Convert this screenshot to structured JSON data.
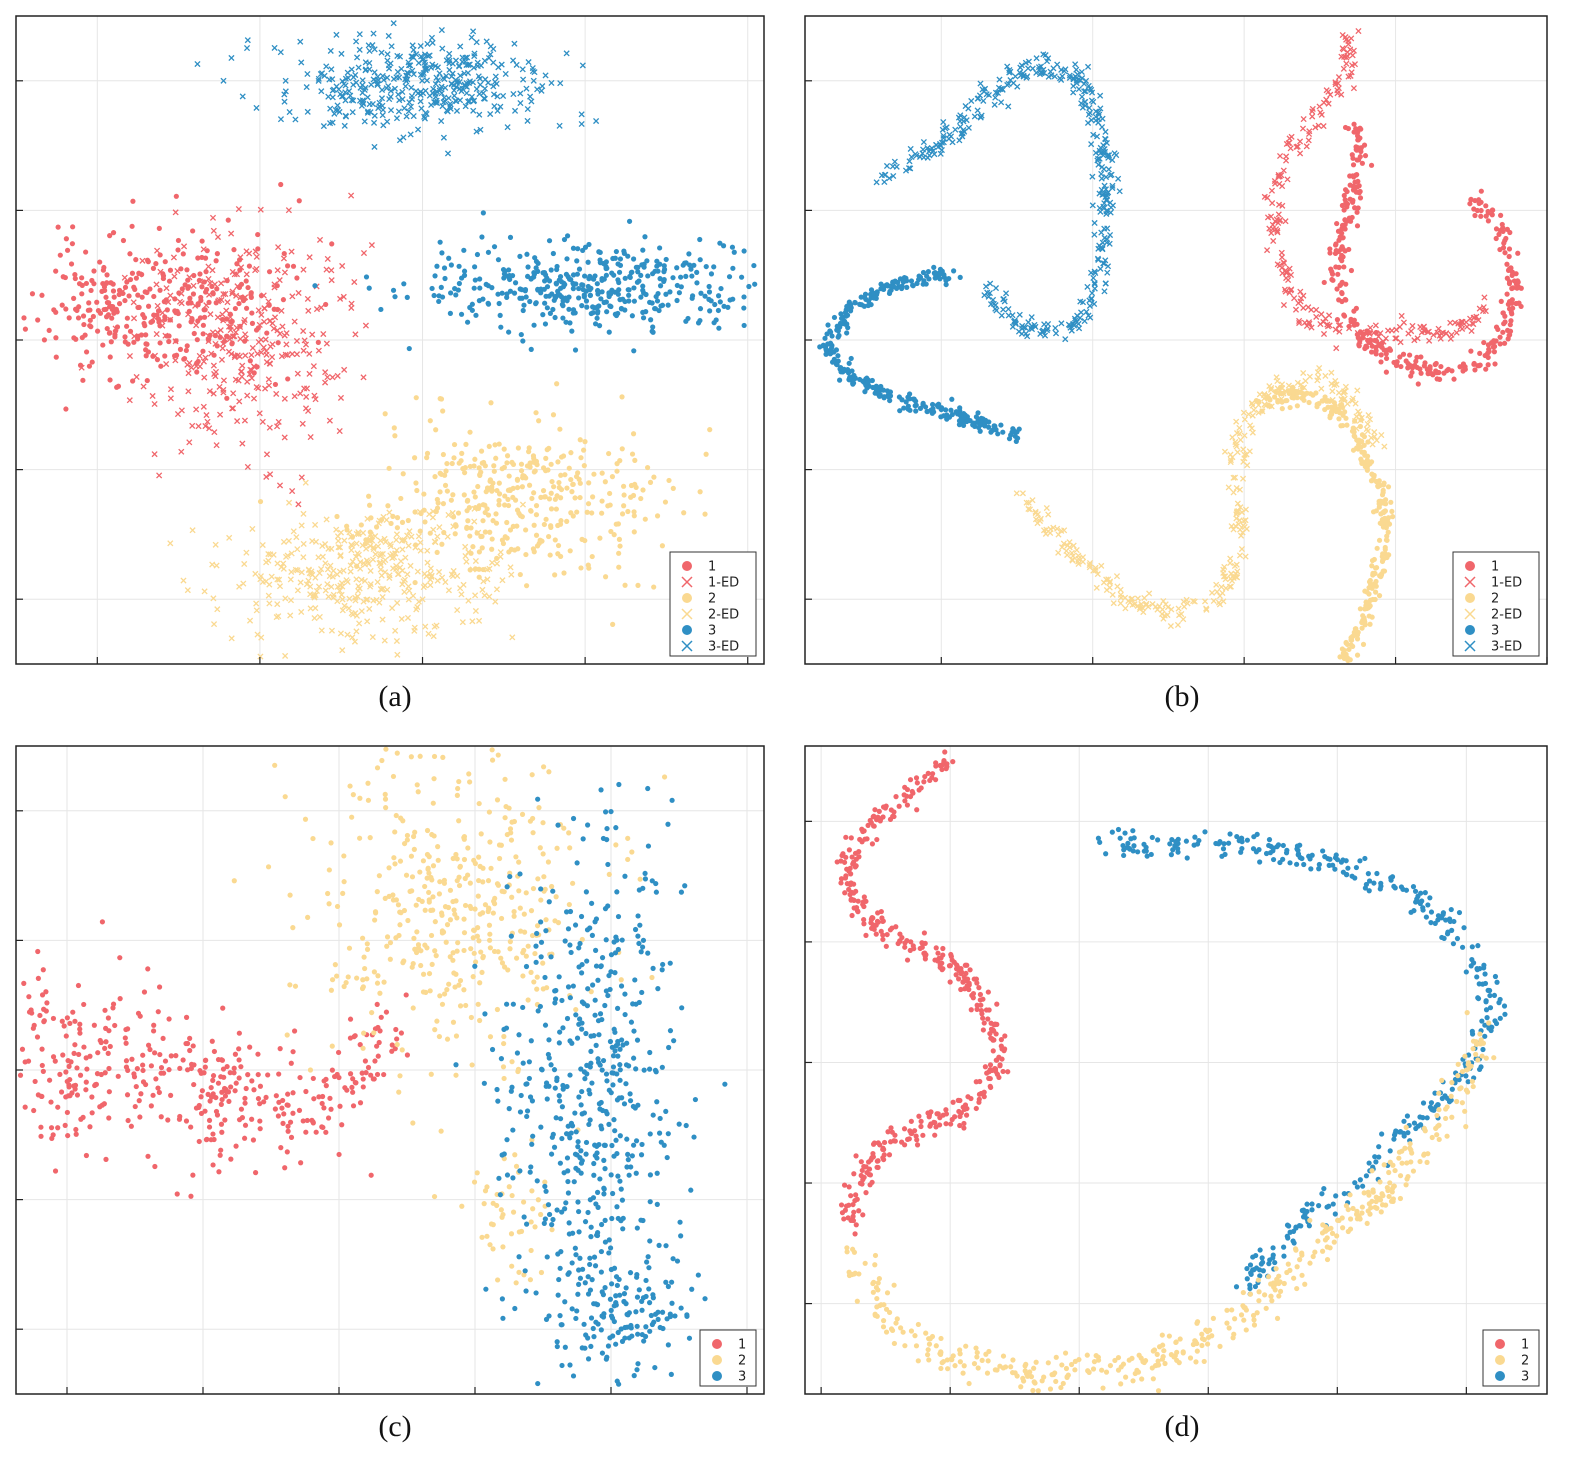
{
  "colors": {
    "c1": "#f0666b",
    "c2": "#fad991",
    "c3": "#2f8fc4"
  },
  "chart_data": [
    {
      "id": "a",
      "type": "scatter",
      "caption": "(a)",
      "xlim": [
        -1.25,
        1.05
      ],
      "ylim": [
        -1.0,
        1.0
      ],
      "xticks": [
        -1.0,
        -0.5,
        0.0,
        0.5,
        1.0
      ],
      "yticks": [
        -0.8,
        -0.4,
        0.0,
        0.4,
        0.8
      ],
      "grid": true,
      "legend": {
        "position": "bottom-right",
        "entries": [
          {
            "label": "1",
            "marker": "o",
            "color": "c1"
          },
          {
            "label": "1-ED",
            "marker": "x",
            "color": "c1"
          },
          {
            "label": "2",
            "marker": "o",
            "color": "c2"
          },
          {
            "label": "2-ED",
            "marker": "x",
            "color": "c2"
          },
          {
            "label": "3",
            "marker": "o",
            "color": "c3"
          },
          {
            "label": "3-ED",
            "marker": "x",
            "color": "c3"
          }
        ]
      },
      "series": [
        {
          "name": "1",
          "color": "c1",
          "marker": "o",
          "shape": "blob",
          "center": [
            -0.83,
            0.1
          ],
          "spread": [
            0.19,
            0.11
          ],
          "n": 340,
          "seed": 11
        },
        {
          "name": "1-ED",
          "color": "c1",
          "marker": "x",
          "shape": "blob",
          "center": [
            -0.55,
            0.0
          ],
          "spread": [
            0.16,
            0.17
          ],
          "n": 320,
          "seed": 12
        },
        {
          "name": "3-ED",
          "color": "c3",
          "marker": "x",
          "shape": "blob",
          "center": [
            -0.05,
            0.79
          ],
          "spread": [
            0.21,
            0.07
          ],
          "n": 400,
          "seed": 13
        },
        {
          "name": "3",
          "color": "c3",
          "marker": "o",
          "shape": "blob",
          "center": [
            0.52,
            0.16
          ],
          "spread": [
            0.28,
            0.07
          ],
          "n": 420,
          "seed": 14
        },
        {
          "name": "2",
          "color": "c2",
          "marker": "o",
          "shape": "blob",
          "center": [
            0.3,
            -0.48
          ],
          "spread": [
            0.23,
            0.12
          ],
          "n": 380,
          "seed": 15
        },
        {
          "name": "2-ED",
          "color": "c2",
          "marker": "x",
          "shape": "blob",
          "center": [
            -0.18,
            -0.72
          ],
          "spread": [
            0.21,
            0.1
          ],
          "n": 380,
          "seed": 16
        }
      ]
    },
    {
      "id": "b",
      "type": "scatter",
      "caption": "(b)",
      "xlim": [
        -1.2,
        1.25
      ],
      "ylim": [
        -1.0,
        1.0
      ],
      "xticks": [
        -0.75,
        -0.25,
        0.25,
        0.75,
        1.25
      ],
      "yticks": [
        -0.8,
        -0.4,
        0.0,
        0.4,
        0.8
      ],
      "grid": true,
      "legend": {
        "position": "bottom-right",
        "entries": [
          {
            "label": "1",
            "marker": "o",
            "color": "c1"
          },
          {
            "label": "1-ED",
            "marker": "x",
            "color": "c1"
          },
          {
            "label": "2",
            "marker": "o",
            "color": "c2"
          },
          {
            "label": "2-ED",
            "marker": "x",
            "color": "c2"
          },
          {
            "label": "3",
            "marker": "o",
            "color": "c3"
          },
          {
            "label": "3-ED",
            "marker": "x",
            "color": "c3"
          }
        ]
      },
      "series": [
        {
          "name": "3-ED",
          "color": "c3",
          "marker": "x",
          "shape": "curve",
          "width": 0.018,
          "n": 380,
          "seed": 21,
          "path": [
            [
              -0.95,
              0.5
            ],
            [
              -0.75,
              0.6
            ],
            [
              -0.6,
              0.75
            ],
            [
              -0.45,
              0.85
            ],
            [
              -0.3,
              0.82
            ],
            [
              -0.22,
              0.65
            ],
            [
              -0.2,
              0.45
            ],
            [
              -0.22,
              0.25
            ],
            [
              -0.25,
              0.1
            ],
            [
              -0.35,
              0.02
            ],
            [
              -0.5,
              0.05
            ],
            [
              -0.6,
              0.15
            ]
          ]
        },
        {
          "name": "3",
          "color": "c3",
          "marker": "o",
          "shape": "curve",
          "width": 0.013,
          "n": 320,
          "seed": 22,
          "path": [
            [
              -0.7,
              0.2
            ],
            [
              -0.88,
              0.18
            ],
            [
              -1.05,
              0.1
            ],
            [
              -1.13,
              -0.02
            ],
            [
              -1.05,
              -0.12
            ],
            [
              -0.9,
              -0.18
            ],
            [
              -0.75,
              -0.22
            ],
            [
              -0.6,
              -0.26
            ],
            [
              -0.5,
              -0.29
            ]
          ]
        },
        {
          "name": "1-ED",
          "color": "c1",
          "marker": "x",
          "shape": "curve",
          "width": 0.018,
          "n": 230,
          "seed": 23,
          "path": [
            [
              0.6,
              0.95
            ],
            [
              0.58,
              0.8
            ],
            [
              0.5,
              0.68
            ],
            [
              0.4,
              0.58
            ],
            [
              0.35,
              0.45
            ],
            [
              0.35,
              0.3
            ],
            [
              0.38,
              0.22
            ],
            [
              0.45,
              0.06
            ],
            [
              0.57,
              0.02
            ],
            [
              0.75,
              0.02
            ],
            [
              0.95,
              0.03
            ],
            [
              1.05,
              0.09
            ]
          ]
        },
        {
          "name": "1",
          "color": "c1",
          "marker": "o",
          "shape": "curve",
          "width": 0.016,
          "n": 340,
          "seed": 24,
          "path": [
            [
              0.62,
              0.66
            ],
            [
              0.62,
              0.5
            ],
            [
              0.58,
              0.35
            ],
            [
              0.55,
              0.2
            ],
            [
              0.6,
              0.06
            ],
            [
              0.72,
              -0.05
            ],
            [
              0.88,
              -0.1
            ],
            [
              1.03,
              -0.08
            ],
            [
              1.12,
              0.05
            ],
            [
              1.15,
              0.2
            ],
            [
              1.1,
              0.35
            ],
            [
              1.0,
              0.44
            ]
          ]
        },
        {
          "name": "2-ED",
          "color": "c2",
          "marker": "x",
          "shape": "curve",
          "width": 0.018,
          "n": 300,
          "seed": 25,
          "path": [
            [
              -0.48,
              -0.5
            ],
            [
              -0.38,
              -0.6
            ],
            [
              -0.25,
              -0.7
            ],
            [
              -0.15,
              -0.8
            ],
            [
              0.0,
              -0.85
            ],
            [
              0.15,
              -0.8
            ],
            [
              0.23,
              -0.68
            ],
            [
              0.25,
              -0.55
            ],
            [
              0.22,
              -0.4
            ],
            [
              0.25,
              -0.25
            ],
            [
              0.35,
              -0.15
            ],
            [
              0.5,
              -0.12
            ],
            [
              0.62,
              -0.2
            ],
            [
              0.7,
              -0.35
            ]
          ]
        },
        {
          "name": "2",
          "color": "c2",
          "marker": "o",
          "shape": "curve",
          "width": 0.014,
          "n": 280,
          "seed": 26,
          "path": [
            [
              0.3,
              -0.2
            ],
            [
              0.45,
              -0.16
            ],
            [
              0.6,
              -0.25
            ],
            [
              0.7,
              -0.45
            ],
            [
              0.72,
              -0.62
            ],
            [
              0.65,
              -0.85
            ],
            [
              0.58,
              -1.0
            ]
          ]
        }
      ]
    },
    {
      "id": "c",
      "type": "scatter",
      "caption": "(c)",
      "xlim": [
        -1.15,
        1.05
      ],
      "ylim": [
        -1.0,
        1.0
      ],
      "xticks": [
        -1.0,
        -0.6,
        -0.2,
        0.2,
        0.6,
        1.0
      ],
      "yticks": [
        -0.8,
        -0.4,
        0.0,
        0.4,
        0.8
      ],
      "grid": true,
      "legend": {
        "position": "bottom-right",
        "entries": [
          {
            "label": "1",
            "marker": "o",
            "color": "c1"
          },
          {
            "label": "2",
            "marker": "o",
            "color": "c2"
          },
          {
            "label": "3",
            "marker": "o",
            "color": "c3"
          }
        ]
      },
      "series": [
        {
          "name": "1",
          "color": "c1",
          "marker": "o",
          "shape": "blob",
          "center": [
            -0.95,
            0.02
          ],
          "spread": [
            0.16,
            0.14
          ],
          "n": 200,
          "seed": 31
        },
        {
          "name": "1",
          "color": "c1",
          "marker": "o",
          "shape": "blob",
          "center": [
            -0.55,
            -0.07
          ],
          "spread": [
            0.12,
            0.11
          ],
          "n": 140,
          "seed": 32
        },
        {
          "name": "1",
          "color": "c1",
          "marker": "o",
          "shape": "curve",
          "width": 0.05,
          "n": 90,
          "seed": 33,
          "path": [
            [
              -0.4,
              -0.16
            ],
            [
              -0.25,
              -0.1
            ],
            [
              -0.12,
              0.0
            ],
            [
              -0.05,
              0.15
            ]
          ]
        },
        {
          "name": "2",
          "color": "c2",
          "marker": "o",
          "shape": "blob",
          "center": [
            0.12,
            0.5
          ],
          "spread": [
            0.21,
            0.24
          ],
          "n": 430,
          "seed": 34
        },
        {
          "name": "2",
          "color": "c2",
          "marker": "o",
          "shape": "blob",
          "center": [
            0.3,
            -0.45
          ],
          "spread": [
            0.07,
            0.1
          ],
          "n": 50,
          "seed": 35
        },
        {
          "name": "3",
          "color": "c3",
          "marker": "o",
          "shape": "blob",
          "center": [
            0.55,
            -0.1
          ],
          "spread": [
            0.13,
            0.4
          ],
          "n": 520,
          "seed": 36
        },
        {
          "name": "3",
          "color": "c3",
          "marker": "o",
          "shape": "blob",
          "center": [
            0.65,
            -0.75
          ],
          "spread": [
            0.1,
            0.1
          ],
          "n": 120,
          "seed": 37
        }
      ]
    },
    {
      "id": "d",
      "type": "scatter",
      "caption": "(d)",
      "xlim": [
        -1.05,
        1.25
      ],
      "ylim": [
        -1.1,
        1.05
      ],
      "xticks": [
        -1.0,
        -0.6,
        -0.2,
        0.2,
        0.6,
        1.0
      ],
      "yticks": [
        -0.8,
        -0.4,
        0.0,
        0.4,
        0.8
      ],
      "grid": true,
      "legend": {
        "position": "bottom-right",
        "entries": [
          {
            "label": "1",
            "marker": "o",
            "color": "c1"
          },
          {
            "label": "2",
            "marker": "o",
            "color": "c2"
          },
          {
            "label": "3",
            "marker": "o",
            "color": "c3"
          }
        ]
      },
      "series": [
        {
          "name": "1",
          "color": "c1",
          "marker": "o",
          "shape": "curve",
          "width": 0.02,
          "n": 420,
          "seed": 41,
          "path": [
            [
              -0.6,
              1.0
            ],
            [
              -0.72,
              0.9
            ],
            [
              -0.85,
              0.78
            ],
            [
              -0.92,
              0.68
            ],
            [
              -0.9,
              0.55
            ],
            [
              -0.82,
              0.45
            ],
            [
              -0.7,
              0.38
            ],
            [
              -0.58,
              0.32
            ],
            [
              -0.5,
              0.2
            ],
            [
              -0.45,
              0.06
            ],
            [
              -0.48,
              -0.08
            ],
            [
              -0.56,
              -0.16
            ],
            [
              -0.7,
              -0.22
            ],
            [
              -0.82,
              -0.3
            ],
            [
              -0.9,
              -0.42
            ],
            [
              -0.92,
              -0.55
            ]
          ]
        },
        {
          "name": "3",
          "color": "c3",
          "marker": "o",
          "shape": "curve",
          "width": 0.024,
          "n": 380,
          "seed": 42,
          "path": [
            [
              -0.15,
              0.72
            ],
            [
              0.05,
              0.72
            ],
            [
              0.3,
              0.72
            ],
            [
              0.55,
              0.67
            ],
            [
              0.8,
              0.58
            ],
            [
              0.95,
              0.45
            ],
            [
              1.05,
              0.3
            ],
            [
              1.08,
              0.15
            ],
            [
              1.0,
              -0.05
            ],
            [
              0.85,
              -0.2
            ],
            [
              0.65,
              -0.38
            ],
            [
              0.45,
              -0.58
            ],
            [
              0.3,
              -0.75
            ]
          ]
        },
        {
          "name": "2",
          "color": "c2",
          "marker": "o",
          "shape": "curve",
          "width": 0.03,
          "n": 440,
          "seed": 43,
          "path": [
            [
              -0.9,
              -0.65
            ],
            [
              -0.78,
              -0.88
            ],
            [
              -0.6,
              -0.98
            ],
            [
              -0.4,
              -1.03
            ],
            [
              -0.2,
              -1.03
            ],
            [
              0.0,
              -1.0
            ],
            [
              0.2,
              -0.92
            ],
            [
              0.4,
              -0.75
            ],
            [
              0.55,
              -0.6
            ],
            [
              0.75,
              -0.42
            ],
            [
              0.95,
              -0.15
            ],
            [
              1.05,
              0.1
            ]
          ]
        }
      ]
    }
  ]
}
